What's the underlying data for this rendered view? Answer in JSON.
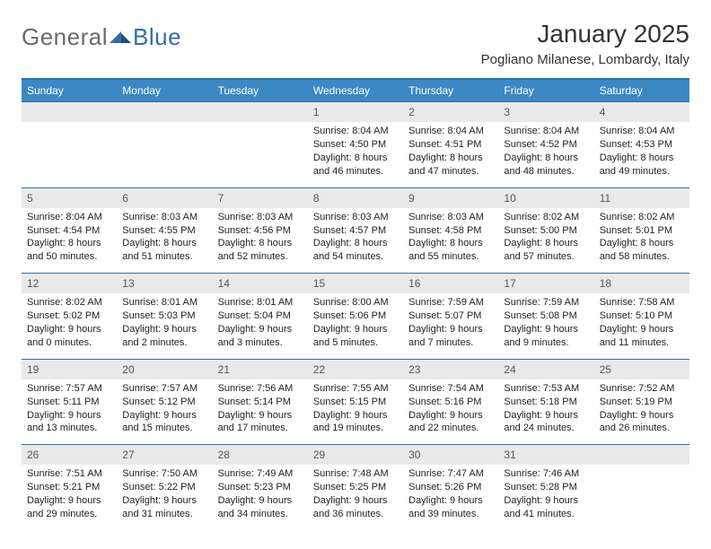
{
  "logo": {
    "textA": "General",
    "textB": "Blue"
  },
  "title": "January 2025",
  "location": "Pogliano Milanese, Lombardy, Italy",
  "colors": {
    "header_bg": "#3b88c4",
    "header_text": "#ffffff",
    "rule": "#2f6fa8",
    "daynum_bg": "#e9e9e9",
    "text": "#222222",
    "logo_gray": "#6b6b6b",
    "logo_blue": "#2f6fa8"
  },
  "day_headers": [
    "Sunday",
    "Monday",
    "Tuesday",
    "Wednesday",
    "Thursday",
    "Friday",
    "Saturday"
  ],
  "weeks": [
    [
      null,
      null,
      null,
      {
        "n": "1",
        "sunrise": "8:04 AM",
        "sunset": "4:50 PM",
        "dh": "8",
        "dm": "46"
      },
      {
        "n": "2",
        "sunrise": "8:04 AM",
        "sunset": "4:51 PM",
        "dh": "8",
        "dm": "47"
      },
      {
        "n": "3",
        "sunrise": "8:04 AM",
        "sunset": "4:52 PM",
        "dh": "8",
        "dm": "48"
      },
      {
        "n": "4",
        "sunrise": "8:04 AM",
        "sunset": "4:53 PM",
        "dh": "8",
        "dm": "49"
      }
    ],
    [
      {
        "n": "5",
        "sunrise": "8:04 AM",
        "sunset": "4:54 PM",
        "dh": "8",
        "dm": "50"
      },
      {
        "n": "6",
        "sunrise": "8:03 AM",
        "sunset": "4:55 PM",
        "dh": "8",
        "dm": "51"
      },
      {
        "n": "7",
        "sunrise": "8:03 AM",
        "sunset": "4:56 PM",
        "dh": "8",
        "dm": "52"
      },
      {
        "n": "8",
        "sunrise": "8:03 AM",
        "sunset": "4:57 PM",
        "dh": "8",
        "dm": "54"
      },
      {
        "n": "9",
        "sunrise": "8:03 AM",
        "sunset": "4:58 PM",
        "dh": "8",
        "dm": "55"
      },
      {
        "n": "10",
        "sunrise": "8:02 AM",
        "sunset": "5:00 PM",
        "dh": "8",
        "dm": "57"
      },
      {
        "n": "11",
        "sunrise": "8:02 AM",
        "sunset": "5:01 PM",
        "dh": "8",
        "dm": "58"
      }
    ],
    [
      {
        "n": "12",
        "sunrise": "8:02 AM",
        "sunset": "5:02 PM",
        "dh": "9",
        "dm": "0"
      },
      {
        "n": "13",
        "sunrise": "8:01 AM",
        "sunset": "5:03 PM",
        "dh": "9",
        "dm": "2"
      },
      {
        "n": "14",
        "sunrise": "8:01 AM",
        "sunset": "5:04 PM",
        "dh": "9",
        "dm": "3"
      },
      {
        "n": "15",
        "sunrise": "8:00 AM",
        "sunset": "5:06 PM",
        "dh": "9",
        "dm": "5"
      },
      {
        "n": "16",
        "sunrise": "7:59 AM",
        "sunset": "5:07 PM",
        "dh": "9",
        "dm": "7"
      },
      {
        "n": "17",
        "sunrise": "7:59 AM",
        "sunset": "5:08 PM",
        "dh": "9",
        "dm": "9"
      },
      {
        "n": "18",
        "sunrise": "7:58 AM",
        "sunset": "5:10 PM",
        "dh": "9",
        "dm": "11"
      }
    ],
    [
      {
        "n": "19",
        "sunrise": "7:57 AM",
        "sunset": "5:11 PM",
        "dh": "9",
        "dm": "13"
      },
      {
        "n": "20",
        "sunrise": "7:57 AM",
        "sunset": "5:12 PM",
        "dh": "9",
        "dm": "15"
      },
      {
        "n": "21",
        "sunrise": "7:56 AM",
        "sunset": "5:14 PM",
        "dh": "9",
        "dm": "17"
      },
      {
        "n": "22",
        "sunrise": "7:55 AM",
        "sunset": "5:15 PM",
        "dh": "9",
        "dm": "19"
      },
      {
        "n": "23",
        "sunrise": "7:54 AM",
        "sunset": "5:16 PM",
        "dh": "9",
        "dm": "22"
      },
      {
        "n": "24",
        "sunrise": "7:53 AM",
        "sunset": "5:18 PM",
        "dh": "9",
        "dm": "24"
      },
      {
        "n": "25",
        "sunrise": "7:52 AM",
        "sunset": "5:19 PM",
        "dh": "9",
        "dm": "26"
      }
    ],
    [
      {
        "n": "26",
        "sunrise": "7:51 AM",
        "sunset": "5:21 PM",
        "dh": "9",
        "dm": "29"
      },
      {
        "n": "27",
        "sunrise": "7:50 AM",
        "sunset": "5:22 PM",
        "dh": "9",
        "dm": "31"
      },
      {
        "n": "28",
        "sunrise": "7:49 AM",
        "sunset": "5:23 PM",
        "dh": "9",
        "dm": "34"
      },
      {
        "n": "29",
        "sunrise": "7:48 AM",
        "sunset": "5:25 PM",
        "dh": "9",
        "dm": "36"
      },
      {
        "n": "30",
        "sunrise": "7:47 AM",
        "sunset": "5:26 PM",
        "dh": "9",
        "dm": "39"
      },
      {
        "n": "31",
        "sunrise": "7:46 AM",
        "sunset": "5:28 PM",
        "dh": "9",
        "dm": "41"
      },
      null
    ]
  ],
  "labels": {
    "sunrise": "Sunrise:",
    "sunset": "Sunset:",
    "daylight_prefix": "Daylight:",
    "hours_word": "hours",
    "and_word": "and",
    "minutes_word": "minutes."
  }
}
